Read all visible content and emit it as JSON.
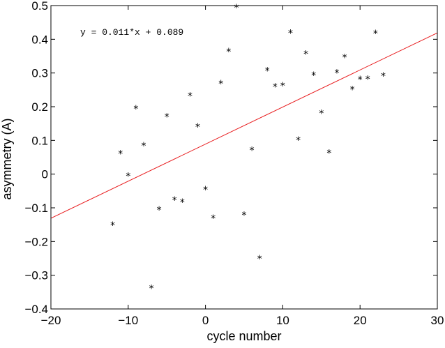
{
  "chart_data": {
    "type": "scatter",
    "xlabel": "cycle number",
    "ylabel": "asymmetry (A)",
    "xlim": [
      -20,
      30
    ],
    "ylim": [
      -0.4,
      0.5
    ],
    "xticks": [
      -20,
      -10,
      0,
      10,
      20,
      30
    ],
    "yticks": [
      -0.4,
      -0.3,
      -0.2,
      -0.1,
      0,
      0.1,
      0.2,
      0.3,
      0.4,
      0.5
    ],
    "xtick_labels": [
      "−20",
      "−10",
      "0",
      "10",
      "20",
      "30"
    ],
    "ytick_labels": [
      "−0.4",
      "−0.3",
      "−0.2",
      "−0.1",
      "0",
      "0.1",
      "0.2",
      "0.3",
      "0.4",
      "0.5"
    ],
    "grid": false,
    "annotation": "y = 0.011*x + 0.089",
    "fit": {
      "slope": 0.011,
      "intercept": 0.089,
      "color": "#e8191b"
    },
    "marker": "*",
    "marker_color": "#000000",
    "points": [
      {
        "x": -12,
        "y": -0.145
      },
      {
        "x": -11,
        "y": 0.067
      },
      {
        "x": -10,
        "y": 0.0
      },
      {
        "x": -9,
        "y": 0.2
      },
      {
        "x": -8,
        "y": 0.09
      },
      {
        "x": -7,
        "y": -0.333
      },
      {
        "x": -6,
        "y": -0.1
      },
      {
        "x": -5,
        "y": 0.176
      },
      {
        "x": -4,
        "y": -0.071
      },
      {
        "x": -3,
        "y": -0.077
      },
      {
        "x": -2,
        "y": 0.238
      },
      {
        "x": -1,
        "y": 0.146
      },
      {
        "x": 0,
        "y": -0.04
      },
      {
        "x": 1,
        "y": -0.125
      },
      {
        "x": 2,
        "y": 0.275
      },
      {
        "x": 3,
        "y": 0.37
      },
      {
        "x": 4,
        "y": 0.5
      },
      {
        "x": 5,
        "y": -0.115
      },
      {
        "x": 6,
        "y": 0.077
      },
      {
        "x": 7,
        "y": -0.245
      },
      {
        "x": 8,
        "y": 0.313
      },
      {
        "x": 9,
        "y": 0.265
      },
      {
        "x": 10,
        "y": 0.268
      },
      {
        "x": 11,
        "y": 0.425
      },
      {
        "x": 12,
        "y": 0.107
      },
      {
        "x": 13,
        "y": 0.362
      },
      {
        "x": 14,
        "y": 0.299
      },
      {
        "x": 15,
        "y": 0.187
      },
      {
        "x": 16,
        "y": 0.069
      },
      {
        "x": 17,
        "y": 0.307
      },
      {
        "x": 18,
        "y": 0.352
      },
      {
        "x": 19,
        "y": 0.257
      },
      {
        "x": 20,
        "y": 0.287
      },
      {
        "x": 21,
        "y": 0.288
      },
      {
        "x": 22,
        "y": 0.423
      },
      {
        "x": 23,
        "y": 0.297
      }
    ]
  }
}
